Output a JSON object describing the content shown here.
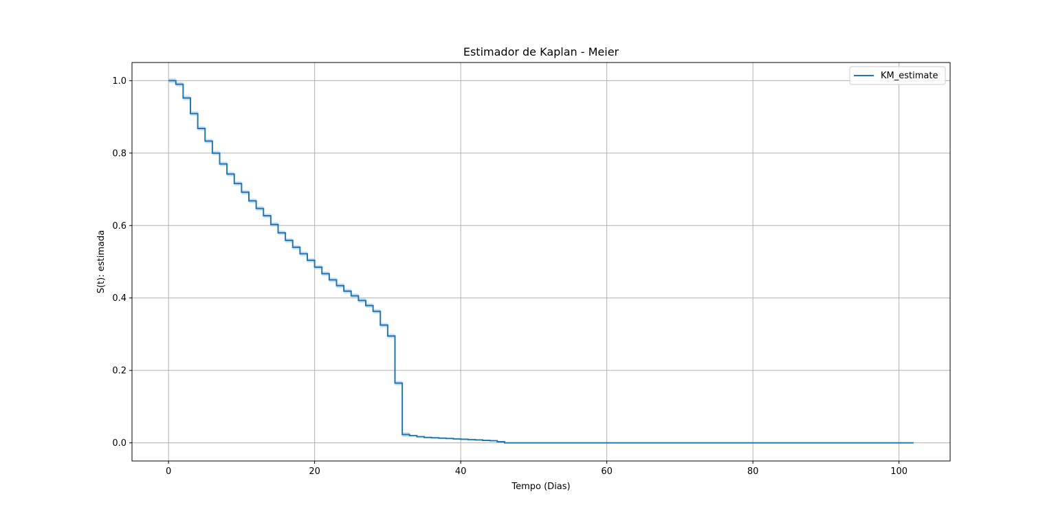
{
  "chart_data": {
    "type": "line",
    "title": "Estimador de Kaplan - Meier",
    "xlabel": "Tempo (Dias)",
    "ylabel": "S(t): estimada",
    "xlim": [
      -5,
      107
    ],
    "ylim": [
      -0.05,
      1.05
    ],
    "xticks": [
      0,
      20,
      40,
      60,
      80,
      100
    ],
    "yticks": [
      0.0,
      0.2,
      0.4,
      0.6,
      0.8,
      1.0
    ],
    "grid": true,
    "legend_position": "top-right",
    "colors": {
      "line": "#1f77b4",
      "band": "#a6c8e6",
      "grid": "#b0b0b0"
    },
    "series": [
      {
        "name": "KM_estimate",
        "step": "post",
        "x": [
          0,
          1,
          2,
          3,
          4,
          5,
          6,
          7,
          8,
          9,
          10,
          11,
          12,
          13,
          14,
          15,
          16,
          17,
          18,
          19,
          20,
          21,
          22,
          23,
          24,
          25,
          26,
          27,
          28,
          29,
          30,
          31,
          32,
          33,
          34,
          35,
          36,
          37,
          38,
          39,
          40,
          41,
          42,
          43,
          44,
          45,
          46,
          102
        ],
        "y": [
          1.0,
          0.99,
          0.952,
          0.909,
          0.868,
          0.833,
          0.8,
          0.77,
          0.742,
          0.716,
          0.692,
          0.668,
          0.647,
          0.627,
          0.603,
          0.58,
          0.559,
          0.54,
          0.522,
          0.504,
          0.485,
          0.467,
          0.45,
          0.434,
          0.419,
          0.406,
          0.393,
          0.379,
          0.363,
          0.325,
          0.295,
          0.165,
          0.023,
          0.02,
          0.017,
          0.015,
          0.014,
          0.013,
          0.012,
          0.011,
          0.01,
          0.009,
          0.008,
          0.007,
          0.006,
          0.003,
          0.0,
          0.0
        ]
      }
    ]
  }
}
